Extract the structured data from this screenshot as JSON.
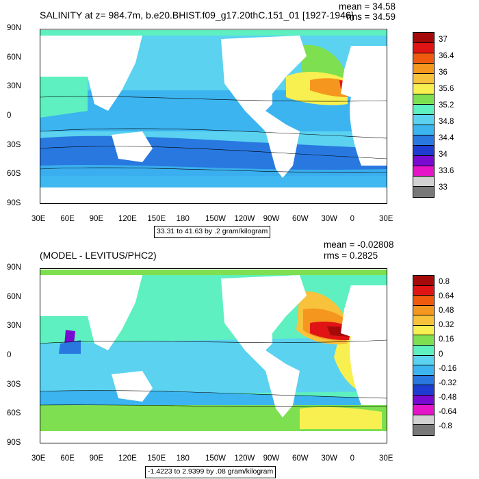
{
  "panels": [
    {
      "title": "SALINITY at z= 984.7m, b.e20.BHIST.f09_g17.20thC.151_01 [1927-1946]",
      "mean_text": "mean = 34.58",
      "rms_text": "rms = 34.59",
      "range_text": "33.31 to 41.63 by .2 gram/kilogram",
      "x_ticks": [
        "30E",
        "60E",
        "90E",
        "120E",
        "150E",
        "180",
        "150W",
        "120W",
        "90W",
        "60W",
        "30W",
        "0",
        "30E"
      ],
      "y_ticks": [
        "90N",
        "60N",
        "30N",
        "0",
        "30S",
        "60S",
        "90S"
      ],
      "colorbar": {
        "labels": [
          "37",
          "36.4",
          "36",
          "35.6",
          "35.2",
          "34.8",
          "34.4",
          "34",
          "33.6",
          "33"
        ],
        "colors": [
          "#a50a0a",
          "#e01414",
          "#f05a0f",
          "#f5961e",
          "#f8c23c",
          "#f8f050",
          "#7ee050",
          "#5ef0c0",
          "#5ad2f0",
          "#3cb4f0",
          "#2878e0",
          "#1e3cd2",
          "#780ad2",
          "#e614c8",
          "#d2d2d2",
          "#787878"
        ]
      }
    },
    {
      "title": "(MODEL - LEVITUS/PHC2)",
      "mean_text": "mean = -0.02808",
      "rms_text": "rms = 0.2825",
      "range_text": "-1.4223 to 2.9399 by .08 gram/kilogram",
      "x_ticks": [
        "30E",
        "60E",
        "90E",
        "120E",
        "150E",
        "180",
        "150W",
        "120W",
        "90W",
        "60W",
        "30W",
        "0",
        "30E"
      ],
      "y_ticks": [
        "90N",
        "60N",
        "30N",
        "0",
        "30S",
        "60S",
        "90S"
      ],
      "colorbar": {
        "labels": [
          "0.8",
          "0.64",
          "0.48",
          "0.32",
          "0.16",
          "0",
          "-0.16",
          "-0.32",
          "-0.48",
          "-0.64",
          "-0.8"
        ],
        "colors": [
          "#a50a0a",
          "#e01414",
          "#f05a0f",
          "#f5961e",
          "#f8c23c",
          "#f8f050",
          "#7ee050",
          "#5ef0c0",
          "#5ad2f0",
          "#3cb4f0",
          "#2878e0",
          "#1e3cd2",
          "#780ad2",
          "#e614c8",
          "#d2d2d2",
          "#787878"
        ]
      }
    }
  ]
}
